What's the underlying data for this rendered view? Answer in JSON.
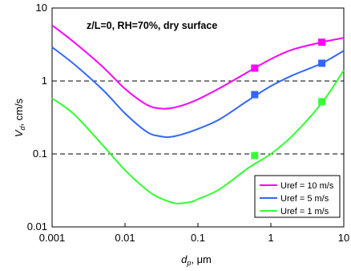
{
  "chart_data": {
    "type": "line",
    "xscale": "log",
    "yscale": "log",
    "xlim": [
      0.001,
      10
    ],
    "ylim": [
      0.01,
      10
    ],
    "xticks": [
      "0.001",
      "0.01",
      "0.1",
      "1",
      "10"
    ],
    "yticks": [
      "10",
      "1",
      "0.1",
      "0.01"
    ],
    "xlabel": {
      "main": "d",
      "sub": "p",
      "rest": ", μm"
    },
    "ylabel": {
      "main": "V",
      "sub": "d",
      "rest": ", cm/s"
    },
    "annotation": "z/L=0, RH=70%, dry surface",
    "reference_lines": [
      1,
      0.1
    ],
    "legend_position": "lower-right",
    "series": [
      {
        "name": "Uref = 10 m/s",
        "color": "#ff00ff",
        "x": [
          0.001,
          0.002,
          0.005,
          0.01,
          0.02,
          0.03,
          0.04,
          0.06,
          0.1,
          0.2,
          0.5,
          1,
          2,
          5,
          10
        ],
        "y": [
          5.8,
          3.4,
          1.55,
          0.78,
          0.47,
          0.42,
          0.42,
          0.46,
          0.56,
          0.8,
          1.35,
          2.0,
          2.7,
          3.4,
          3.9
        ],
        "markers": {
          "x": [
            0.6,
            5
          ],
          "y": [
            1.5,
            3.4
          ]
        }
      },
      {
        "name": "Uref = 5 m/s",
        "color": "#3366ff",
        "x": [
          0.001,
          0.002,
          0.005,
          0.01,
          0.02,
          0.03,
          0.04,
          0.06,
          0.1,
          0.2,
          0.5,
          1,
          2,
          5,
          10
        ],
        "y": [
          2.9,
          1.7,
          0.75,
          0.36,
          0.2,
          0.175,
          0.17,
          0.185,
          0.22,
          0.3,
          0.55,
          0.85,
          1.2,
          1.75,
          2.6
        ],
        "markers": {
          "x": [
            0.6,
            5
          ],
          "y": [
            0.65,
            1.75
          ]
        }
      },
      {
        "name": "Uref = 1 m/s",
        "color": "#33ff33",
        "x": [
          0.001,
          0.002,
          0.005,
          0.01,
          0.02,
          0.03,
          0.05,
          0.08,
          0.1,
          0.2,
          0.5,
          1,
          2,
          5,
          10
        ],
        "y": [
          0.58,
          0.35,
          0.13,
          0.06,
          0.032,
          0.025,
          0.021,
          0.022,
          0.024,
          0.033,
          0.065,
          0.1,
          0.18,
          0.5,
          1.4
        ],
        "markers": {
          "x": [
            0.6,
            5
          ],
          "y": [
            0.095,
            0.52
          ]
        }
      }
    ]
  }
}
